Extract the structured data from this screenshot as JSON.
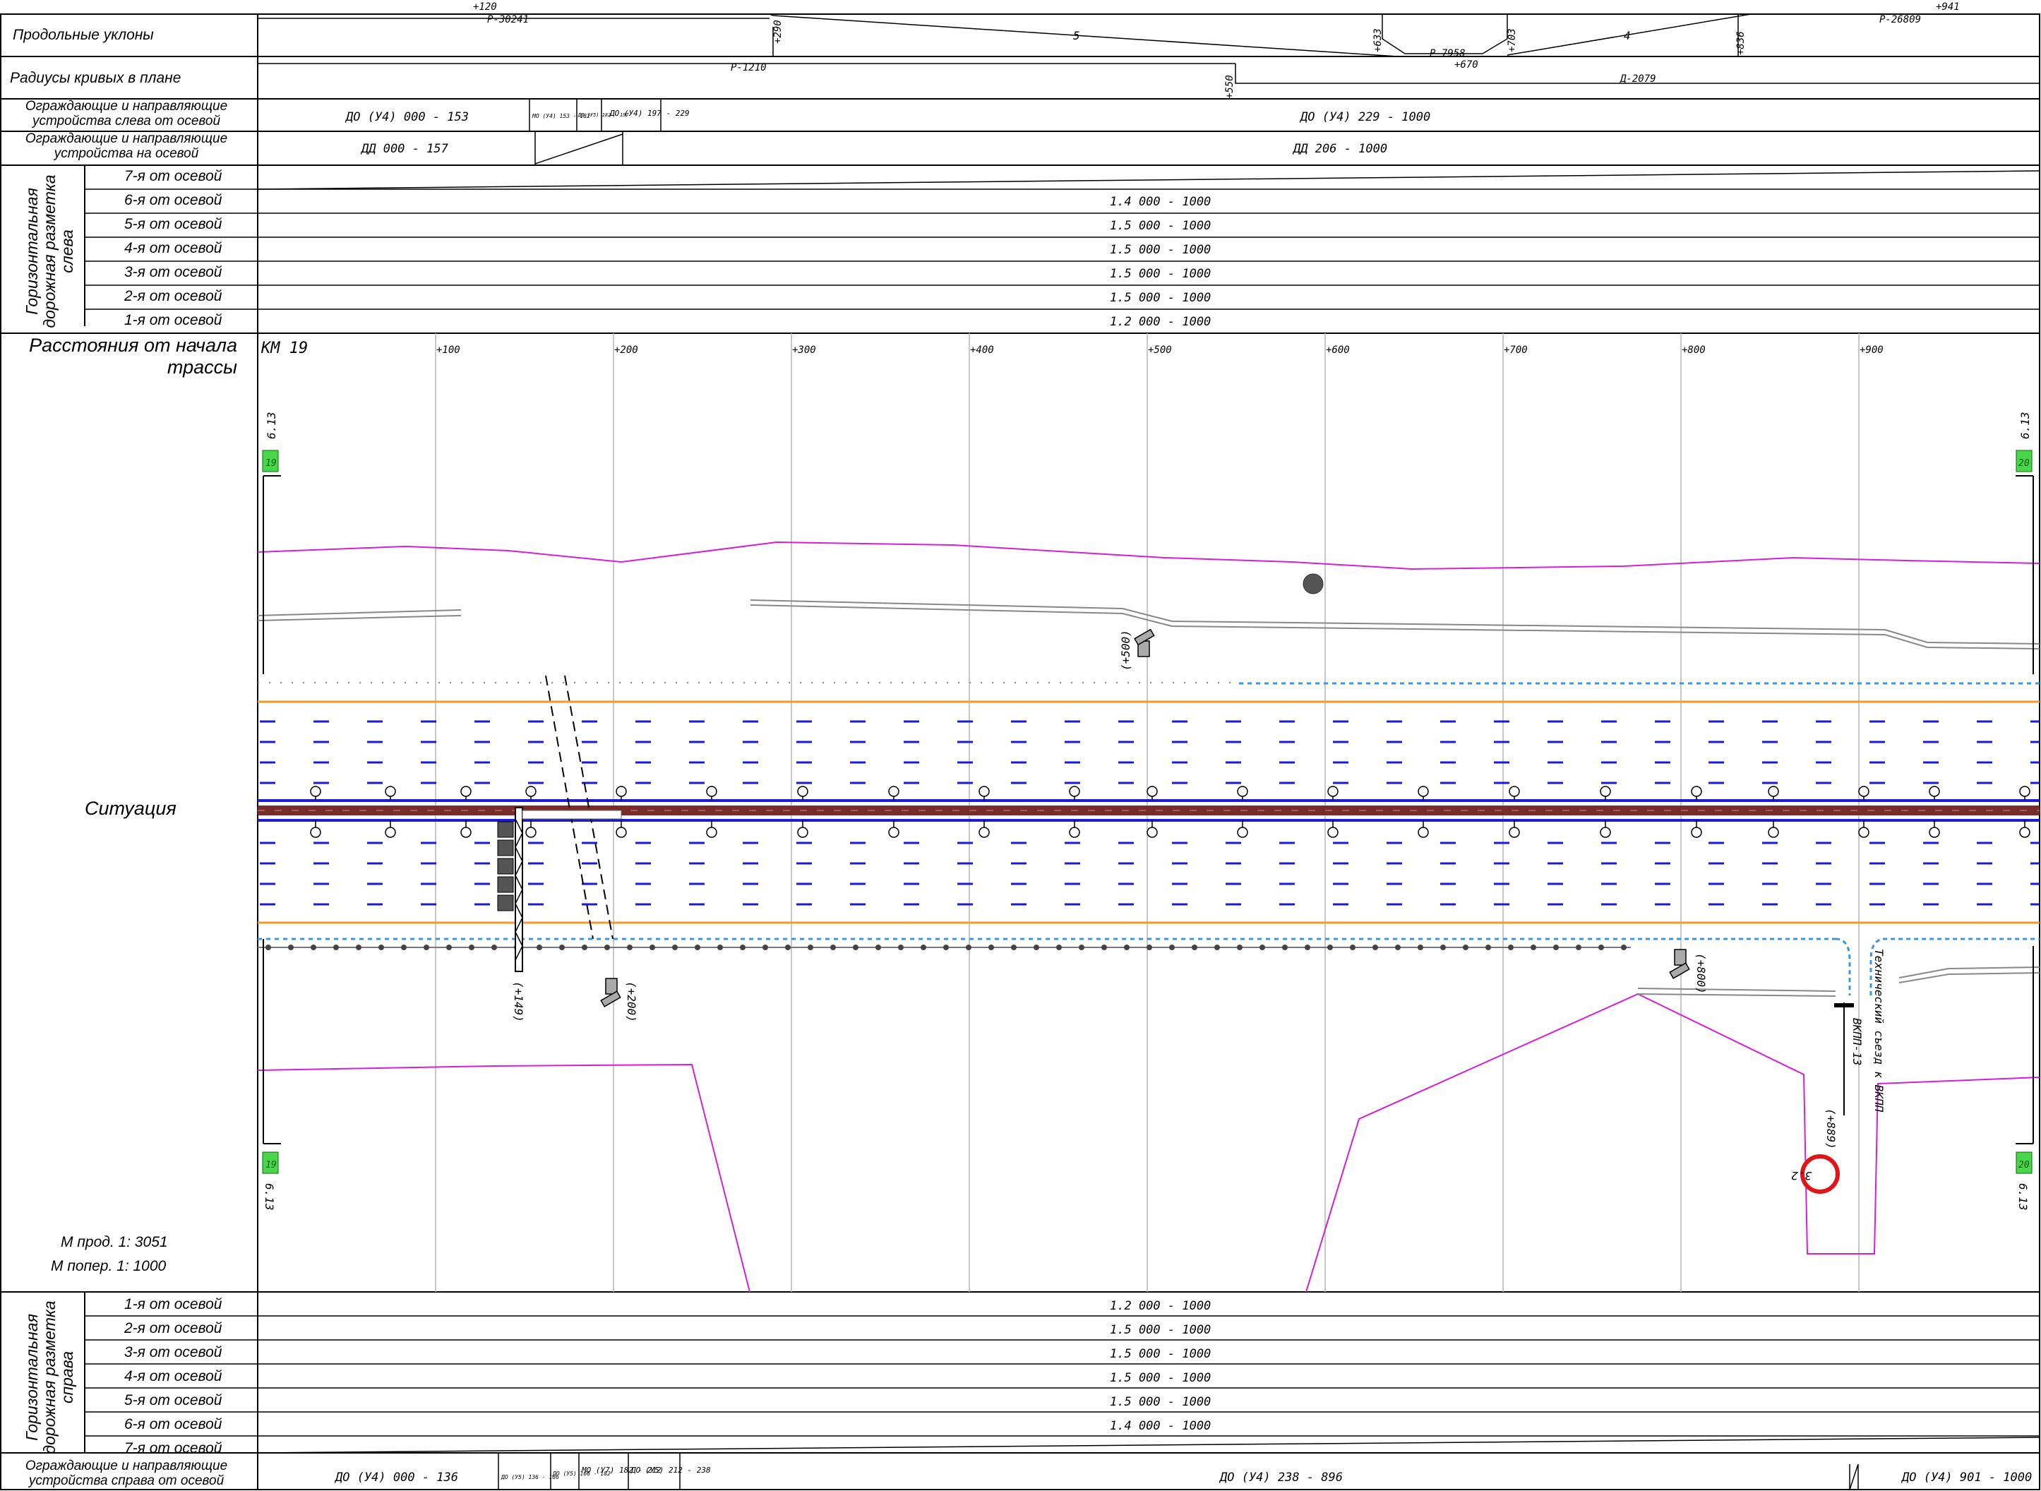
{
  "header": {
    "grades_label": "Продольные уклоны",
    "curves_label": "Радиусы кривых в плане",
    "guard_left_label": "Ограждающие и направляющие устройства слева от осевой",
    "guard_center_label": "Ограждающие и направляющие устройства на осевой",
    "marking_left_group": "Горизонтальная дорожная разметка слева",
    "marking_left_rows": [
      "7-я от осевой",
      "6-я от осевой",
      "5-я от осевой",
      "4-я от осевой",
      "3-я от осевой",
      "2-я от осевой",
      "1-я от осевой"
    ],
    "marking_left_values": [
      "",
      "1.4 000 - 1000",
      "1.5 000 - 1000",
      "1.5 000 - 1000",
      "1.5 000 - 1000",
      "1.5 000 - 1000",
      "1.2 000 - 1000"
    ]
  },
  "grades": {
    "marks": [
      "+120",
      "Р-30241",
      "+290",
      "5",
      "+633",
      "Р-7958",
      "+670",
      "+703",
      "4",
      "+836",
      "+941",
      "Р-26809"
    ]
  },
  "curves": {
    "marks": [
      "Р-1210",
      "+550",
      "Д-2079"
    ]
  },
  "guard_left": {
    "items": [
      "ДО (У4) 000 - 153",
      "МО (У4) 153 - 182",
      "ДО (У5) 182 - 197",
      "ДО (У4) 197 - 229",
      "ДО (У4) 229 - 1000"
    ]
  },
  "guard_center": {
    "items": [
      "ДД 000 - 157",
      "ДД 206 - 1000"
    ]
  },
  "situation": {
    "distance_label": "Расстояния от начала трассы",
    "section_label": "Ситуация",
    "km_label": "КМ 19",
    "chainage": [
      "+100",
      "+200",
      "+300",
      "+400",
      "+500",
      "+600",
      "+700",
      "+800",
      "+900"
    ],
    "scale_long": "М прод. 1: 3051",
    "scale_cross": "М попер. 1: 1000",
    "sign_values": [
      "6.13",
      "6.13",
      "6.13",
      "6.13"
    ],
    "sign_ids": [
      "19",
      "20",
      "19",
      "20"
    ],
    "object_labels": [
      "(+500)",
      "(+149)",
      "(+200)",
      "(+800)",
      "(+889)",
      "3.2",
      "ВКПП-13",
      "Технический съезд к ВКПП"
    ]
  },
  "footer": {
    "marking_right_group": "Горизонтальная дорожная разметка справа",
    "marking_right_rows": [
      "1-я от осевой",
      "2-я от осевой",
      "3-я от осевой",
      "4-я от осевой",
      "5-я от осевой",
      "6-я от осевой",
      "7-я от осевой"
    ],
    "marking_right_values": [
      "1.2 000 - 1000",
      "1.5 000 - 1000",
      "1.5 000 - 1000",
      "1.5 000 - 1000",
      "1.5 000 - 1000",
      "1.4 000 - 1000",
      ""
    ],
    "guard_right_label": "Ограждающие и направляющие устройства справа от осевой",
    "guard_right_items": [
      "ДО (У4) 000 - 136",
      "ДО (У5) 136 - 166",
      "ДО (У5) 166 - 182",
      "МО (У7) 182 - 212",
      "ДО (У5) 212 - 238",
      "ДО (У4) 238 - 896",
      "ДО (У4) 901 - 1000"
    ]
  },
  "colors": {
    "magenta": "#d41fd4",
    "lane_blue": "#1a1ad8",
    "median": "#7a2b2b",
    "edge_orange": "#f39a2a",
    "dotted_blue": "#3a96e0",
    "sign_green": "#4ad64a",
    "red_circle": "#e0151a",
    "grid": "#b5b5b5"
  }
}
